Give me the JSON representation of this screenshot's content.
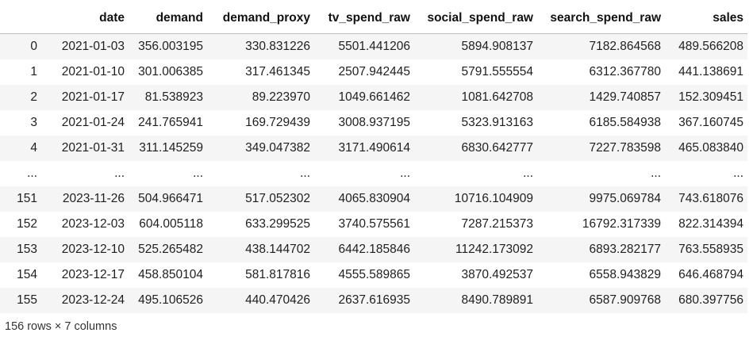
{
  "table": {
    "columns": [
      "",
      "date",
      "demand",
      "demand_proxy",
      "tv_spend_raw",
      "social_spend_raw",
      "search_spend_raw",
      "sales"
    ],
    "rows": [
      [
        "0",
        "2021-01-03",
        "356.003195",
        "330.831226",
        "5501.441206",
        "5894.908137",
        "7182.864568",
        "489.566208"
      ],
      [
        "1",
        "2021-01-10",
        "301.006385",
        "317.461345",
        "2507.942445",
        "5791.555554",
        "6312.367780",
        "441.138691"
      ],
      [
        "2",
        "2021-01-17",
        "81.538923",
        "89.223970",
        "1049.661462",
        "1081.642708",
        "1429.740857",
        "152.309451"
      ],
      [
        "3",
        "2021-01-24",
        "241.765941",
        "169.729439",
        "3008.937195",
        "5323.913163",
        "6185.584938",
        "367.160745"
      ],
      [
        "4",
        "2021-01-31",
        "311.145259",
        "349.047382",
        "3171.490614",
        "6830.642777",
        "7227.783598",
        "465.083840"
      ],
      [
        "...",
        "...",
        "...",
        "...",
        "...",
        "...",
        "...",
        "..."
      ],
      [
        "151",
        "2023-11-26",
        "504.966471",
        "517.052302",
        "4065.830904",
        "10716.104909",
        "9975.069784",
        "743.618076"
      ],
      [
        "152",
        "2023-12-03",
        "604.005118",
        "633.299525",
        "3740.575561",
        "7287.215373",
        "16792.317339",
        "822.314394"
      ],
      [
        "153",
        "2023-12-10",
        "525.265482",
        "438.144702",
        "6442.185846",
        "11242.173092",
        "6893.282177",
        "763.558935"
      ],
      [
        "154",
        "2023-12-17",
        "458.850104",
        "581.817816",
        "4555.589865",
        "3870.492537",
        "6558.943829",
        "646.468794"
      ],
      [
        "155",
        "2023-12-24",
        "495.106526",
        "440.470426",
        "2637.616935",
        "8490.789891",
        "6587.909768",
        "680.397756"
      ]
    ]
  },
  "caption": "156 rows × 7 columns"
}
